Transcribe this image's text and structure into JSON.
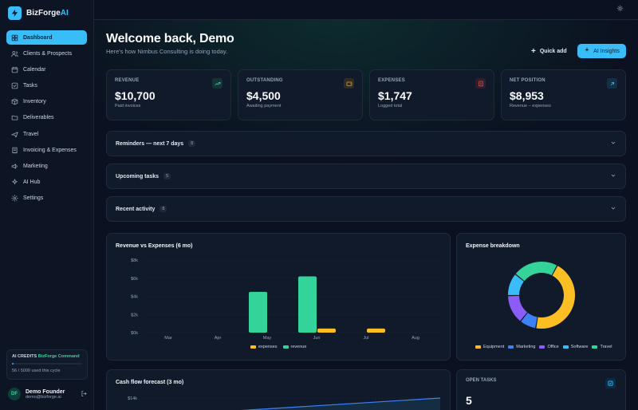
{
  "brand": {
    "name": "BizForge",
    "suffix": "AI"
  },
  "nav": [
    {
      "label": "Dashboard",
      "icon": "dashboard-icon",
      "active": true
    },
    {
      "label": "Clients & Prospects",
      "icon": "users-icon"
    },
    {
      "label": "Calendar",
      "icon": "calendar-icon"
    },
    {
      "label": "Tasks",
      "icon": "tasks-icon"
    },
    {
      "label": "Inventory",
      "icon": "box-icon"
    },
    {
      "label": "Deliverables",
      "icon": "folder-icon"
    },
    {
      "label": "Travel",
      "icon": "plane-icon"
    },
    {
      "label": "Invoicing & Expenses",
      "icon": "invoice-icon"
    },
    {
      "label": "Marketing",
      "icon": "megaphone-icon"
    },
    {
      "label": "AI Hub",
      "icon": "sparkle-icon"
    },
    {
      "label": "Settings",
      "icon": "gear-icon"
    }
  ],
  "credits": {
    "title": "AI CREDITS",
    "plan": "BizForge Command",
    "usage_text": "56 / 5000 used this cycle",
    "used_fraction": 0.0112
  },
  "user": {
    "initials": "DF",
    "name": "Demo Founder",
    "email": "demo@bizforge.ai"
  },
  "header": {
    "welcome": "Welcome back, Demo",
    "subtitle": "Here's how Nimbus Consulting is doing today.",
    "quick_add": "Quick add",
    "ai_insights": "AI Insights"
  },
  "stats": [
    {
      "label": "REVENUE",
      "value": "$10,700",
      "sub": "Paid invoices",
      "icon": "trending-up-icon",
      "color": "#34d399"
    },
    {
      "label": "OUTSTANDING",
      "value": "$4,500",
      "sub": "Awaiting payment",
      "icon": "wallet-icon",
      "color": "#f59e0b"
    },
    {
      "label": "EXPENSES",
      "value": "$1,747",
      "sub": "Logged total",
      "icon": "receipt-icon",
      "color": "#ef4444"
    },
    {
      "label": "NET POSITION",
      "value": "$8,953",
      "sub": "Revenue − expenses",
      "icon": "arrow-up-right-icon",
      "color": "#38bdf8"
    }
  ],
  "accordions": [
    {
      "title": "Reminders — next 7 days",
      "count": "8"
    },
    {
      "title": "Upcoming tasks",
      "count": "5"
    },
    {
      "title": "Recent activity",
      "count": "8"
    }
  ],
  "revenue_panel": {
    "title": "Revenue vs Expenses (6 mo)"
  },
  "expense_panel": {
    "title": "Expense breakdown"
  },
  "cashflow_panel": {
    "title": "Cash flow forecast (3 mo)",
    "ytick_top": "$14k"
  },
  "open_tasks": {
    "label": "OPEN TASKS",
    "value": "5"
  },
  "colors": {
    "accent": "#38bdf8",
    "revenue": "#34d399",
    "expenses": "#fbbf24"
  },
  "chart_data": [
    {
      "type": "bar",
      "title": "Revenue vs Expenses (6 mo)",
      "categories": [
        "Mar",
        "Apr",
        "May",
        "Jun",
        "Jul",
        "Aug"
      ],
      "series": [
        {
          "name": "expenses",
          "values": [
            0,
            0,
            0,
            450,
            450,
            0
          ],
          "color": "#fbbf24"
        },
        {
          "name": "revenue",
          "values": [
            0,
            0,
            4500,
            6200,
            0,
            0
          ],
          "color": "#34d399"
        }
      ],
      "yticks": [
        "$0k",
        "$2k",
        "$4k",
        "$6k",
        "$8k"
      ],
      "ylim": [
        0,
        8000
      ],
      "legend": "bottom"
    },
    {
      "type": "pie",
      "title": "Expense breakdown",
      "labels": [
        "Equipment",
        "Marketing",
        "Office",
        "Software",
        "Travel"
      ],
      "values": [
        45,
        8,
        14,
        11,
        22
      ],
      "colors": [
        "#fbbf24",
        "#3b82f6",
        "#8b5cf6",
        "#38bdf8",
        "#34d399"
      ],
      "legend": "bottom"
    }
  ]
}
